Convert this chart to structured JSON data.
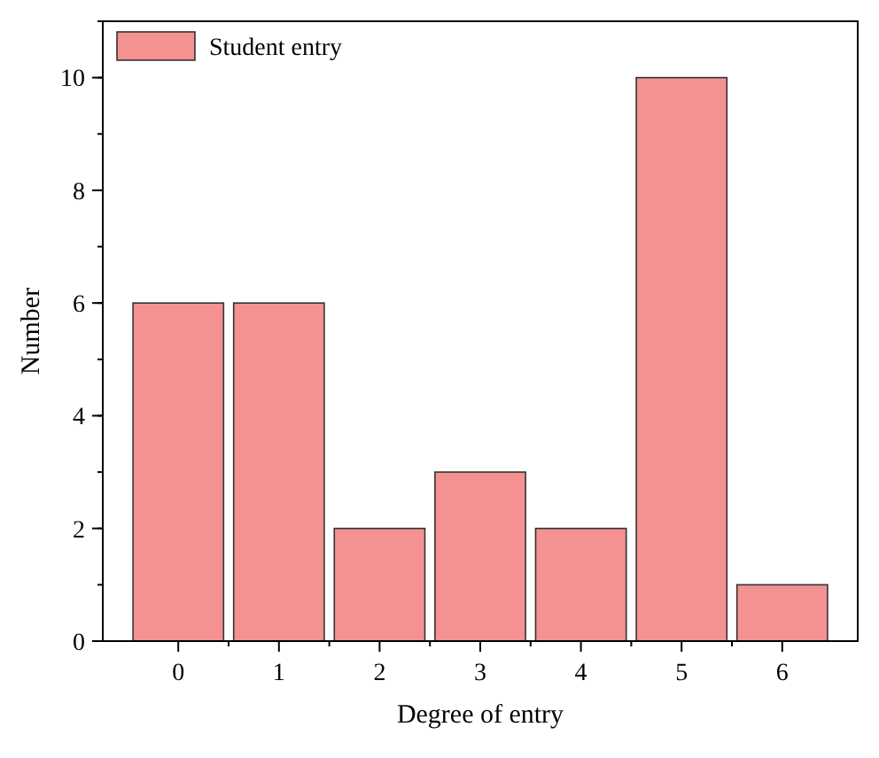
{
  "chart_data": {
    "type": "bar",
    "xlabel": "Degree of entry",
    "ylabel": "Number",
    "categories": [
      "0",
      "1",
      "2",
      "3",
      "4",
      "5",
      "6"
    ],
    "series": [
      {
        "name": "Student entry",
        "color": "#f49191",
        "values": [
          6,
          6,
          2,
          3,
          2,
          10,
          1
        ]
      }
    ],
    "ylim": [
      0,
      11
    ],
    "yticks": [
      0,
      2,
      4,
      6,
      8,
      10
    ],
    "grid": false,
    "legend": "top left"
  }
}
